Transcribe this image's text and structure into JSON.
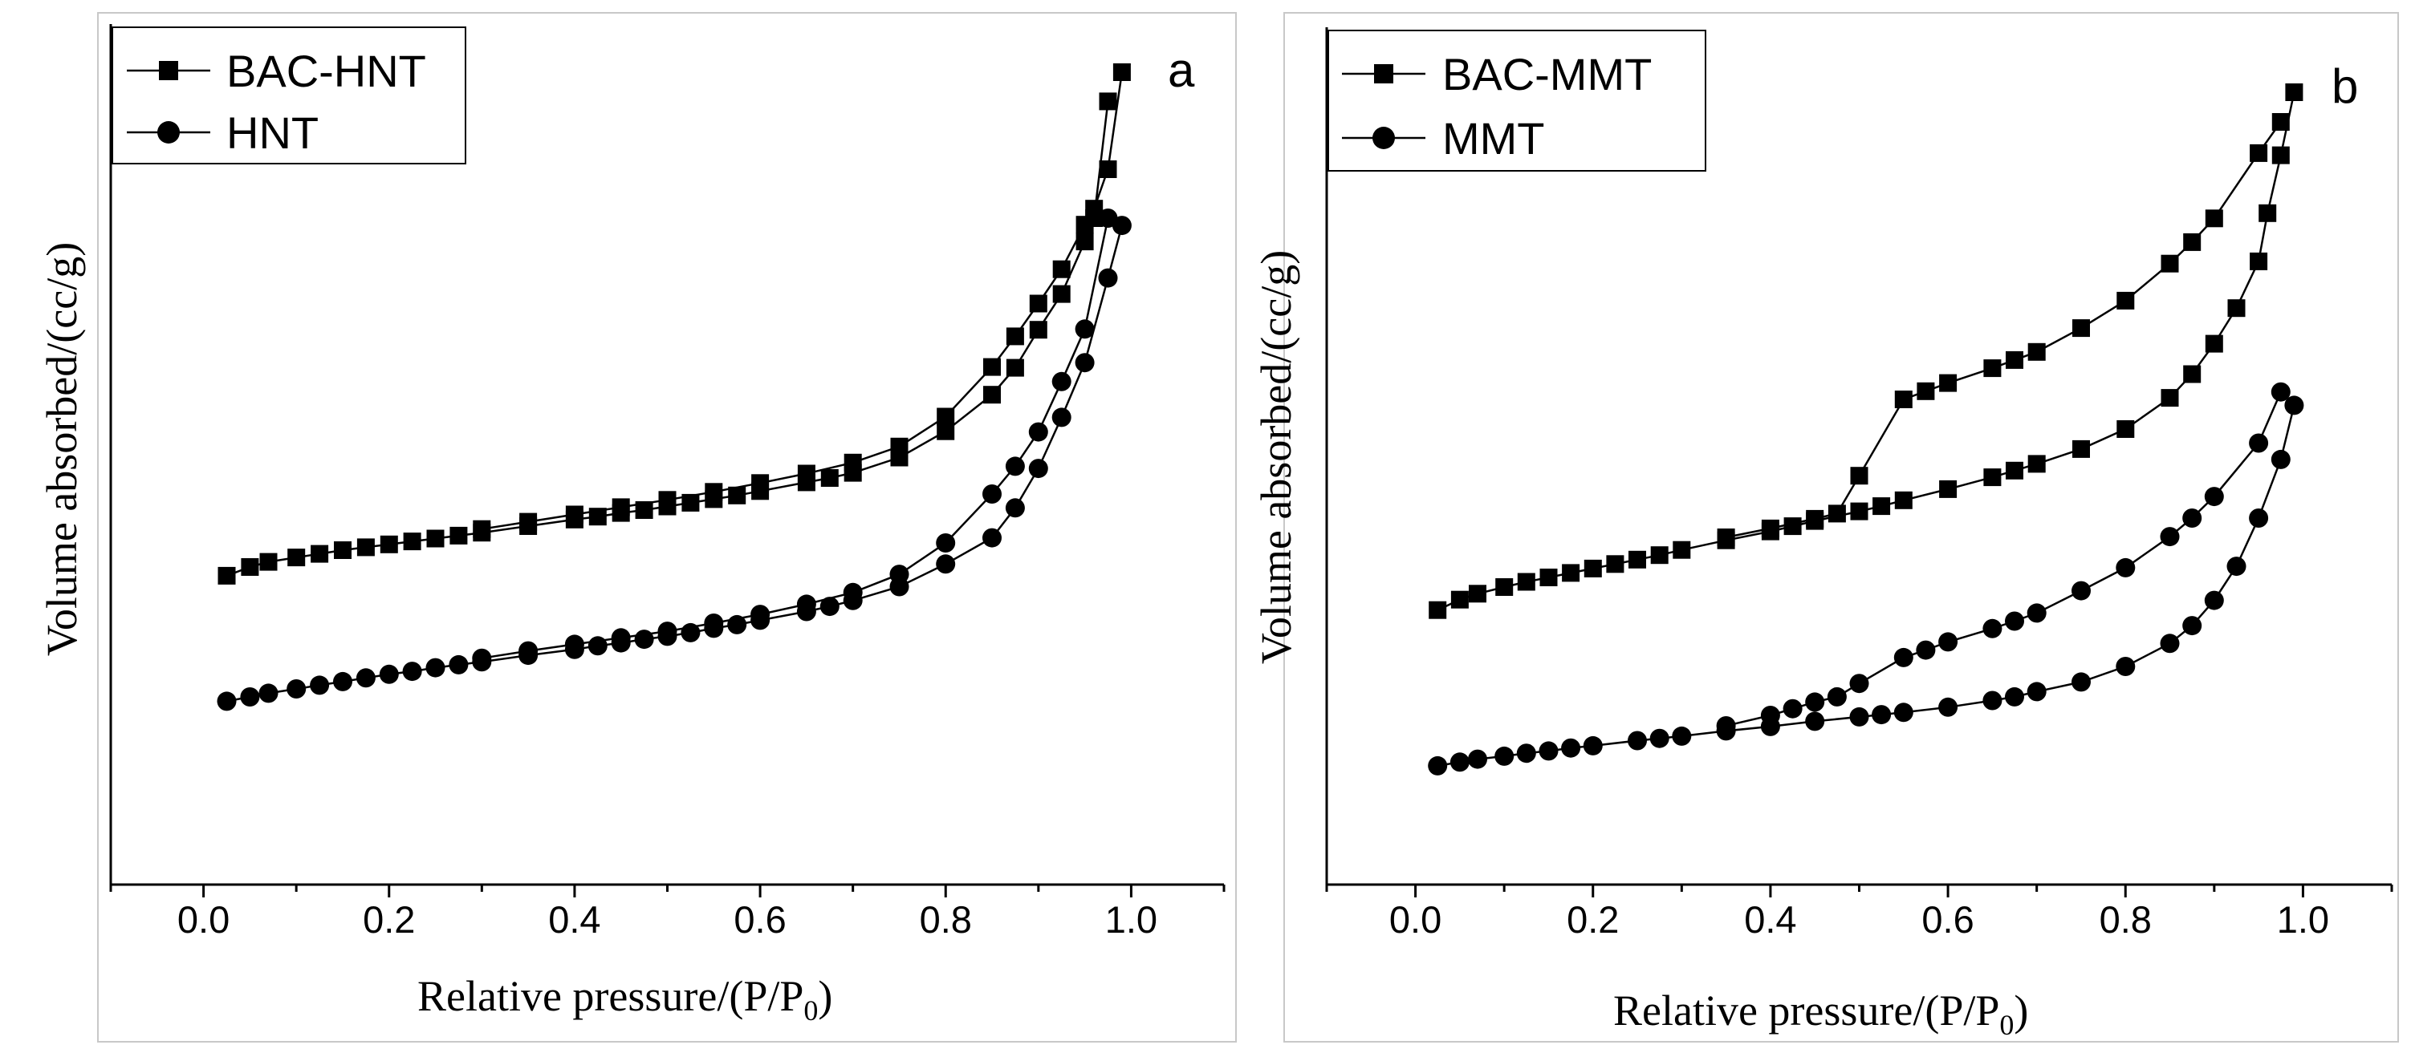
{
  "chart_data": [
    {
      "panel": "a",
      "type": "line",
      "ylabel": "Volume absorbed/(cc/g)",
      "xlabel": "Relative pressure/(P/P",
      "xlabel_sub": "0",
      "xlabel_close": ")",
      "xlim": [
        -0.1,
        1.1
      ],
      "ylim": [
        0,
        100
      ],
      "xticks": [
        0.0,
        0.2,
        0.4,
        0.6,
        0.8,
        1.0
      ],
      "xtick_labels": [
        "0.0",
        "0.2",
        "0.4",
        "0.6",
        "0.8",
        "1.0"
      ],
      "legend_position": "top-left",
      "series": [
        {
          "name": "BAC-HNT",
          "marker": "square",
          "branch": "adsorption",
          "x": [
            0.025,
            0.05,
            0.07,
            0.1,
            0.125,
            0.15,
            0.175,
            0.2,
            0.225,
            0.25,
            0.275,
            0.3,
            0.35,
            0.4,
            0.425,
            0.45,
            0.475,
            0.5,
            0.525,
            0.55,
            0.575,
            0.6,
            0.65,
            0.675,
            0.7,
            0.75,
            0.8,
            0.85,
            0.875,
            0.9,
            0.925,
            0.95,
            0.96,
            0.975,
            0.99
          ],
          "y": [
            31.0,
            32.2,
            32.9,
            33.5,
            34.0,
            34.5,
            34.9,
            35.3,
            35.7,
            36.1,
            36.5,
            36.9,
            37.8,
            38.7,
            39.1,
            39.6,
            40.0,
            40.5,
            41.0,
            41.5,
            42.0,
            42.6,
            43.8,
            44.4,
            45.1,
            47.2,
            50.8,
            55.8,
            59.5,
            64.7,
            69.6,
            76.8,
            81.3,
            86.7,
            100.0
          ]
        },
        {
          "name": "BAC-HNT",
          "marker": "square",
          "branch": "desorption",
          "x": [
            0.3,
            0.35,
            0.4,
            0.45,
            0.5,
            0.55,
            0.6,
            0.65,
            0.7,
            0.75,
            0.8,
            0.85,
            0.875,
            0.9,
            0.925,
            0.95,
            0.96,
            0.975
          ],
          "y": [
            37.4,
            38.4,
            39.4,
            40.4,
            41.4,
            42.5,
            43.7,
            45.0,
            46.5,
            48.7,
            52.8,
            59.6,
            63.8,
            68.3,
            73.0,
            79.1,
            80.0,
            96.0
          ]
        },
        {
          "name": "HNT",
          "marker": "circle",
          "branch": "adsorption",
          "x": [
            0.025,
            0.05,
            0.07,
            0.1,
            0.125,
            0.15,
            0.175,
            0.2,
            0.225,
            0.25,
            0.275,
            0.3,
            0.35,
            0.4,
            0.425,
            0.45,
            0.475,
            0.5,
            0.525,
            0.55,
            0.575,
            0.6,
            0.65,
            0.675,
            0.7,
            0.75,
            0.8,
            0.85,
            0.875,
            0.9,
            0.925,
            0.95,
            0.975,
            0.99
          ],
          "y": [
            13.8,
            14.4,
            14.9,
            15.5,
            16.0,
            16.5,
            17.0,
            17.5,
            17.9,
            18.4,
            18.8,
            19.2,
            20.1,
            20.9,
            21.4,
            21.8,
            22.3,
            22.7,
            23.2,
            23.8,
            24.3,
            24.9,
            26.1,
            26.8,
            27.6,
            29.5,
            32.6,
            36.2,
            40.3,
            45.7,
            52.7,
            60.2,
            71.8,
            79.0
          ]
        },
        {
          "name": "HNT",
          "marker": "circle",
          "branch": "desorption",
          "x": [
            0.3,
            0.35,
            0.4,
            0.45,
            0.5,
            0.55,
            0.6,
            0.65,
            0.7,
            0.75,
            0.8,
            0.85,
            0.875,
            0.9,
            0.925,
            0.95,
            0.975
          ],
          "y": [
            19.7,
            20.7,
            21.6,
            22.5,
            23.4,
            24.5,
            25.7,
            27.1,
            28.7,
            31.2,
            35.5,
            42.2,
            46.0,
            50.7,
            57.6,
            64.8,
            80.0
          ]
        }
      ]
    },
    {
      "panel": "b",
      "type": "line",
      "ylabel": "Volume absorbed/(cc/g)",
      "xlabel": "Relative pressure/(P/P",
      "xlabel_sub": "0",
      "xlabel_close": ")",
      "xlim": [
        -0.1,
        1.1
      ],
      "ylim": [
        0,
        100
      ],
      "xticks": [
        0.0,
        0.2,
        0.4,
        0.6,
        0.8,
        1.0
      ],
      "xtick_labels": [
        "0.0",
        "0.2",
        "0.4",
        "0.6",
        "0.8",
        "1.0"
      ],
      "legend_position": "top-left",
      "series": [
        {
          "name": "BAC-MMT",
          "marker": "square",
          "branch": "adsorption",
          "x": [
            0.025,
            0.05,
            0.07,
            0.1,
            0.125,
            0.15,
            0.175,
            0.2,
            0.225,
            0.25,
            0.275,
            0.3,
            0.35,
            0.4,
            0.425,
            0.45,
            0.5,
            0.525,
            0.55,
            0.6,
            0.65,
            0.675,
            0.7,
            0.75,
            0.8,
            0.85,
            0.875,
            0.9,
            0.925,
            0.95,
            0.96,
            0.975,
            0.99
          ],
          "y": [
            30.2,
            31.6,
            32.4,
            33.3,
            34.0,
            34.6,
            35.2,
            35.8,
            36.4,
            37.0,
            37.6,
            38.3,
            39.6,
            40.8,
            41.5,
            42.2,
            43.5,
            44.2,
            45.0,
            46.5,
            48.1,
            49.0,
            49.9,
            51.9,
            54.6,
            58.8,
            62.0,
            66.1,
            70.9,
            77.2,
            83.7,
            91.5,
            100.0
          ]
        },
        {
          "name": "BAC-MMT",
          "marker": "square",
          "branch": "desorption",
          "x": [
            0.35,
            0.4,
            0.45,
            0.475,
            0.5,
            0.55,
            0.575,
            0.6,
            0.65,
            0.675,
            0.7,
            0.75,
            0.8,
            0.85,
            0.875,
            0.9,
            0.95,
            0.975
          ],
          "y": [
            40.0,
            41.2,
            42.5,
            43.2,
            48.3,
            58.6,
            59.7,
            60.8,
            62.8,
            63.9,
            65.0,
            68.2,
            71.9,
            76.9,
            79.8,
            83.0,
            91.8,
            96.0
          ]
        },
        {
          "name": "MMT",
          "marker": "circle",
          "branch": "adsorption",
          "x": [
            0.025,
            0.05,
            0.07,
            0.1,
            0.125,
            0.15,
            0.175,
            0.2,
            0.25,
            0.275,
            0.3,
            0.35,
            0.4,
            0.45,
            0.5,
            0.525,
            0.55,
            0.6,
            0.65,
            0.675,
            0.7,
            0.75,
            0.8,
            0.85,
            0.875,
            0.9,
            0.925,
            0.95,
            0.975,
            0.99
          ],
          "y": [
            9.2,
            9.7,
            10.1,
            10.5,
            10.9,
            11.2,
            11.6,
            11.9,
            12.6,
            12.9,
            13.2,
            13.9,
            14.5,
            15.2,
            15.8,
            16.1,
            16.4,
            17.1,
            18.0,
            18.5,
            19.2,
            20.5,
            22.6,
            25.7,
            28.1,
            31.5,
            36.1,
            42.6,
            50.5,
            57.8
          ]
        },
        {
          "name": "MMT",
          "marker": "circle",
          "branch": "desorption",
          "x": [
            0.35,
            0.4,
            0.425,
            0.45,
            0.475,
            0.5,
            0.55,
            0.575,
            0.6,
            0.65,
            0.675,
            0.7,
            0.75,
            0.8,
            0.85,
            0.875,
            0.9,
            0.95,
            0.975
          ],
          "y": [
            14.6,
            16.0,
            16.9,
            17.8,
            18.5,
            20.3,
            23.8,
            24.8,
            25.9,
            27.7,
            28.7,
            29.8,
            32.8,
            35.9,
            40.1,
            42.6,
            45.5,
            52.7,
            59.6
          ]
        }
      ]
    }
  ]
}
